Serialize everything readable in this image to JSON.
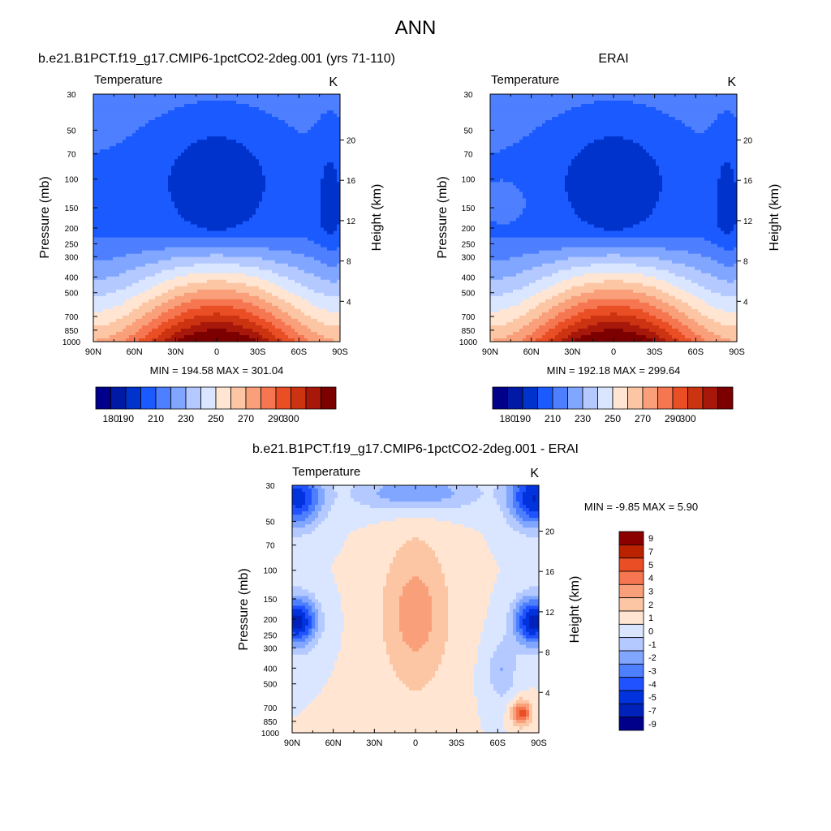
{
  "page": {
    "main_title": "ANN"
  },
  "colors": {
    "abs_palette": [
      "#00008b",
      "#001aa6",
      "#0033cc",
      "#1a5aff",
      "#4d7fff",
      "#80a6ff",
      "#b3c9ff",
      "#dae6ff",
      "#ffe5d2",
      "#fcc6a5",
      "#f9a07a",
      "#f57650",
      "#e94e25",
      "#cc3311",
      "#a8180a",
      "#7d0000"
    ],
    "diff_palette": [
      "#00008b",
      "#0022bb",
      "#0033dd",
      "#2052ff",
      "#4d7fff",
      "#80a6ff",
      "#b3c9ff",
      "#dae6ff",
      "#ffe5d2",
      "#fcc6a5",
      "#f9a07a",
      "#f57650",
      "#e94e25",
      "#bb2200",
      "#8b0000"
    ]
  },
  "chart_data": [
    {
      "id": "model",
      "type": "heatmap",
      "title": "b.e21.B1PCT.f19_g17.CMIP6-1pctCO2-2deg.001 (yrs 71-110)",
      "left_string": "Temperature",
      "right_string": "K",
      "ylabel": "Pressure (mb)",
      "ylabel_right": "Height (km)",
      "x_ticks": [
        "90N",
        "60N",
        "30N",
        "0",
        "30S",
        "60S",
        "90S"
      ],
      "x_values": [
        90,
        60,
        30,
        0,
        -30,
        -60,
        -90
      ],
      "y_ticks": [
        "30",
        "50",
        "70",
        "100",
        "150",
        "200",
        "250",
        "300",
        "400",
        "500",
        "700",
        "850",
        "1000"
      ],
      "y_values": [
        30,
        50,
        70,
        100,
        150,
        200,
        250,
        300,
        400,
        500,
        700,
        850,
        1000
      ],
      "height_ticks": [
        "20",
        "16",
        "12",
        "8",
        "4"
      ],
      "height_values": [
        20,
        16,
        12,
        8,
        4
      ],
      "min_max_label": "MIN = 194.58  MAX = 301.04",
      "min": 194.58,
      "max": 301.04,
      "colorbar_labels": [
        "180",
        "190",
        "210",
        "230",
        "250",
        "270",
        "290",
        "300"
      ],
      "colorbar_levels": [
        170,
        180,
        190,
        200,
        210,
        220,
        230,
        240,
        250,
        260,
        270,
        280,
        290,
        295,
        300
      ]
    },
    {
      "id": "obs",
      "type": "heatmap",
      "title": "ERAI",
      "left_string": "Temperature",
      "right_string": "K",
      "ylabel": "Pressure (mb)",
      "ylabel_right": "Height (km)",
      "x_ticks": [
        "90N",
        "60N",
        "30N",
        "0",
        "30S",
        "60S",
        "90S"
      ],
      "x_values": [
        90,
        60,
        30,
        0,
        -30,
        -60,
        -90
      ],
      "y_ticks": [
        "30",
        "50",
        "70",
        "100",
        "150",
        "200",
        "250",
        "300",
        "400",
        "500",
        "700",
        "850",
        "1000"
      ],
      "y_values": [
        30,
        50,
        70,
        100,
        150,
        200,
        250,
        300,
        400,
        500,
        700,
        850,
        1000
      ],
      "height_ticks": [
        "20",
        "16",
        "12",
        "8",
        "4"
      ],
      "height_values": [
        20,
        16,
        12,
        8,
        4
      ],
      "min_max_label": "MIN = 192.18  MAX = 299.64",
      "min": 192.18,
      "max": 299.64,
      "colorbar_labels": [
        "180",
        "190",
        "210",
        "230",
        "250",
        "270",
        "290",
        "300"
      ],
      "colorbar_levels": [
        170,
        180,
        190,
        200,
        210,
        220,
        230,
        240,
        250,
        260,
        270,
        280,
        290,
        295,
        300
      ]
    },
    {
      "id": "diff",
      "type": "heatmap",
      "title": "b.e21.B1PCT.f19_g17.CMIP6-1pctCO2-2deg.001 - ERAI",
      "left_string": "Temperature",
      "right_string": "K",
      "ylabel": "Pressure (mb)",
      "ylabel_right": "Height (km)",
      "x_ticks": [
        "90N",
        "60N",
        "30N",
        "0",
        "30S",
        "60S",
        "90S"
      ],
      "x_values": [
        90,
        60,
        30,
        0,
        -30,
        -60,
        -90
      ],
      "y_ticks": [
        "30",
        "50",
        "70",
        "100",
        "150",
        "200",
        "250",
        "300",
        "400",
        "500",
        "700",
        "850",
        "1000"
      ],
      "y_values": [
        30,
        50,
        70,
        100,
        150,
        200,
        250,
        300,
        400,
        500,
        700,
        850,
        1000
      ],
      "height_ticks": [
        "20",
        "16",
        "12",
        "8",
        "4"
      ],
      "height_values": [
        20,
        16,
        12,
        8,
        4
      ],
      "min_max_label": "MIN =  -9.85  MAX =   5.90",
      "min": -9.85,
      "max": 5.9,
      "colorbar_labels": [
        "9",
        "7",
        "5",
        "4",
        "3",
        "2",
        "1",
        "0",
        "-1",
        "-2",
        "-3",
        "-4",
        "-5",
        "-7",
        "-9"
      ],
      "colorbar_levels": [
        -9,
        -7,
        -5,
        -4,
        -3,
        -2,
        -1,
        0,
        1,
        2,
        3,
        4,
        5,
        7,
        9
      ]
    }
  ]
}
